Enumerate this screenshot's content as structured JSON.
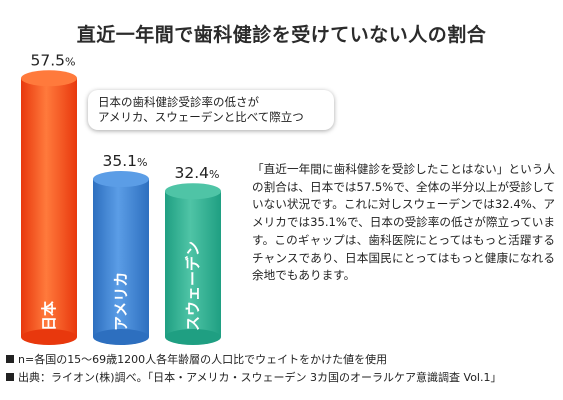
{
  "chart_data": {
    "type": "bar",
    "title": "直近一年間で歯科健診を受けていない人の割合",
    "categories": [
      "日本",
      "アメリカ",
      "スウェーデン"
    ],
    "values": [
      57.5,
      35.1,
      32.4
    ],
    "value_labels": [
      "57.5%",
      "35.1%",
      "32.4%"
    ],
    "colors": [
      "#e8380d",
      "#2d6fbf",
      "#1f9f82"
    ]
  },
  "callout": {
    "line1": "日本の歯科健診受診率の低さが",
    "line2": "アメリカ、スウェーデンと比べて際立つ"
  },
  "description": "「直近一年間に歯科健診を受診したことはない」という人の割合は、日本では57.5%で、全体の半分以上が受診していない状況です。これに対しスウェーデンでは32.4%、アメリカでは35.1%で、日本の受診率の低さが際立っています。このギャップは、歯科医院にとってはもっと活躍するチャンスであり、日本国民にとってはもっと健康になれる余地でもあります。",
  "notes": [
    "n=各国の15～69歳1200人各年齢層の人口比でウェイトをかけた値を使用",
    "出典：ライオン(株)調べ。「日本・アメリカ・スウェーデン 3カ国のオーラルケア意識調査 Vol.1」"
  ]
}
